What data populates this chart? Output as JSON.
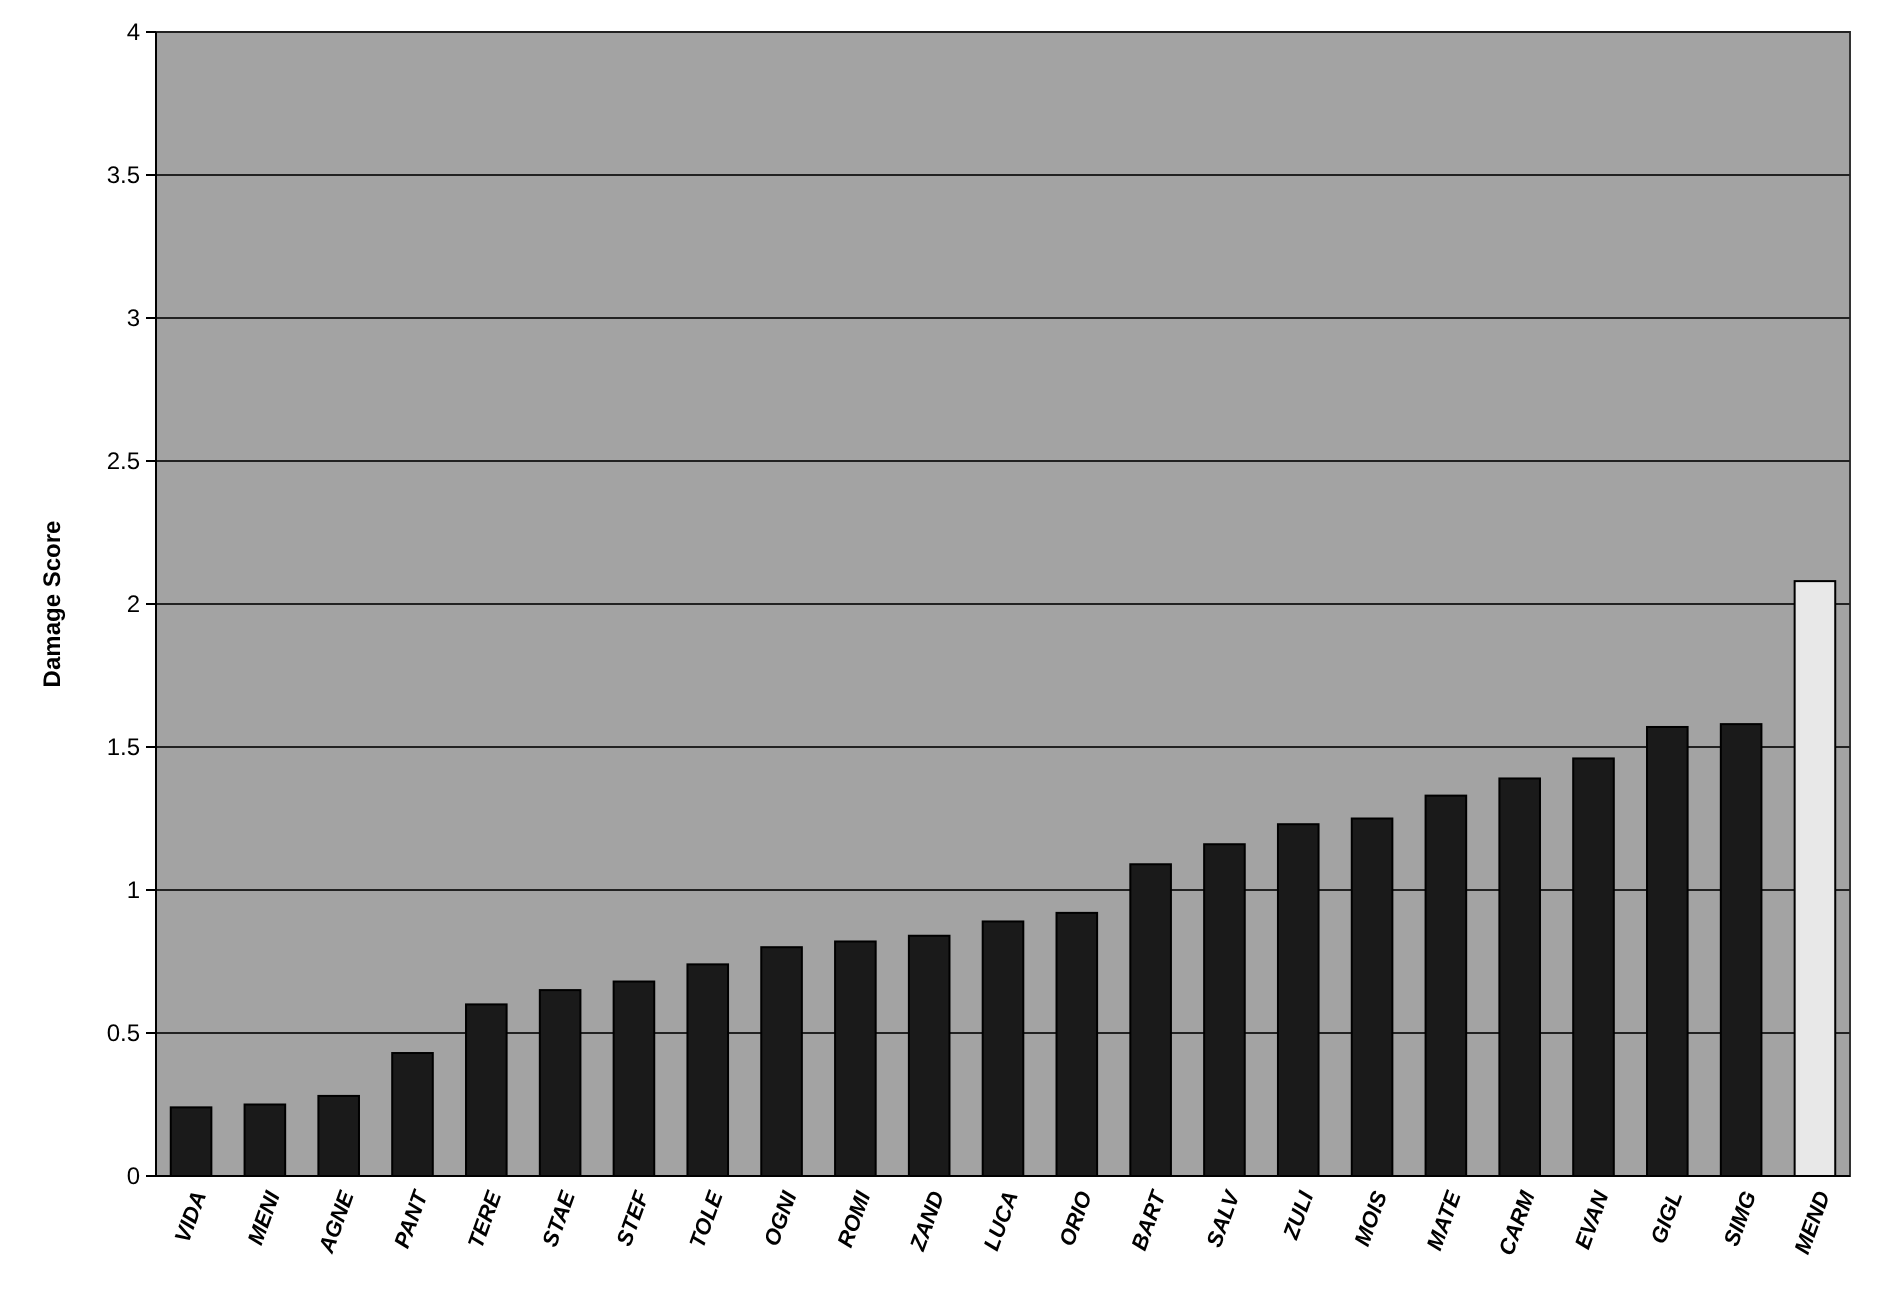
{
  "chart_data": {
    "type": "bar",
    "ylabel": "Damage Score",
    "categories": [
      "VIDA",
      "MENI",
      "AGNE",
      "PANT",
      "TERE",
      "STAE",
      "STEF",
      "TOLE",
      "OGNI",
      "ROMI",
      "ZAND",
      "LUCA",
      "ORIO",
      "BART",
      "SALV",
      "ZULI",
      "MOIS",
      "MATE",
      "CARM",
      "EVAN",
      "GIGL",
      "SIMG",
      "MEND"
    ],
    "values": [
      0.24,
      0.25,
      0.28,
      0.43,
      0.6,
      0.65,
      0.68,
      0.74,
      0.8,
      0.82,
      0.84,
      0.89,
      0.92,
      1.09,
      1.16,
      1.23,
      1.25,
      1.33,
      1.39,
      1.46,
      1.57,
      1.58,
      2.08
    ],
    "colors": [
      "#1a1a1a",
      "#1a1a1a",
      "#1a1a1a",
      "#1a1a1a",
      "#1a1a1a",
      "#1a1a1a",
      "#1a1a1a",
      "#1a1a1a",
      "#1a1a1a",
      "#1a1a1a",
      "#1a1a1a",
      "#1a1a1a",
      "#1a1a1a",
      "#1a1a1a",
      "#1a1a1a",
      "#1a1a1a",
      "#1a1a1a",
      "#1a1a1a",
      "#1a1a1a",
      "#1a1a1a",
      "#1a1a1a",
      "#1a1a1a",
      "#e8e8e8"
    ],
    "ylim": [
      0,
      4
    ],
    "yticks": [
      0,
      0.5,
      1,
      1.5,
      2,
      2.5,
      3,
      3.5,
      4
    ],
    "grid": true
  }
}
